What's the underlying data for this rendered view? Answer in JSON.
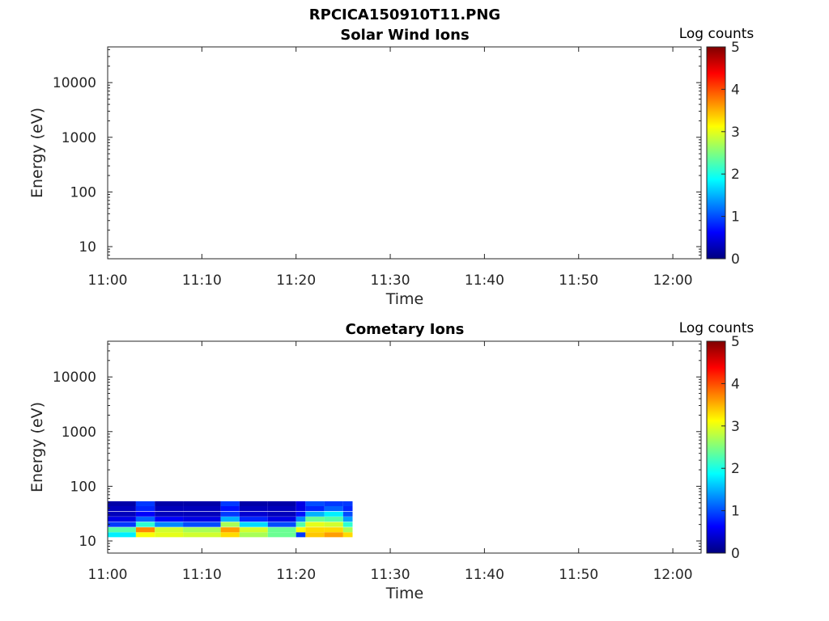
{
  "figure": {
    "title": "RPCICA150910T11.PNG"
  },
  "colorscale": {
    "name": "jet",
    "stops": [
      "#00007f",
      "#0000ff",
      "#007fff",
      "#00ffff",
      "#7fff7f",
      "#ffff00",
      "#ff7f00",
      "#ff0000",
      "#7f0000"
    ]
  },
  "chart_data": [
    {
      "type": "heatmap",
      "title": "Solar Wind Ions",
      "xlabel": "Time",
      "ylabel": "Energy (eV)",
      "yscale": "log",
      "ylim": [
        6,
        45000
      ],
      "xlim": [
        "11:00",
        "12:03"
      ],
      "xticks": [
        "11:00",
        "11:10",
        "11:20",
        "11:30",
        "11:40",
        "11:50",
        "12:00"
      ],
      "yticks": [
        "10",
        "100",
        "1000",
        "10000"
      ],
      "colorbar": {
        "label": "Log counts",
        "range": [
          0,
          5
        ],
        "ticks": [
          "0",
          "1",
          "2",
          "3",
          "4",
          "5"
        ]
      },
      "data": []
    },
    {
      "type": "heatmap",
      "title": "Cometary Ions",
      "xlabel": "Time",
      "ylabel": "Energy (eV)",
      "yscale": "log",
      "ylim": [
        6,
        45000
      ],
      "xlim": [
        "11:00",
        "12:03"
      ],
      "xticks": [
        "11:00",
        "11:10",
        "11:20",
        "11:30",
        "11:40",
        "11:50",
        "12:00"
      ],
      "yticks": [
        "10",
        "100",
        "1000",
        "10000"
      ],
      "colorbar": {
        "label": "Log counts",
        "range": [
          0,
          5
        ],
        "ticks": [
          "0",
          "1",
          "2",
          "3",
          "4",
          "5"
        ]
      },
      "energy_bins_eV": [
        13,
        16,
        20,
        25,
        31,
        39,
        48
      ],
      "data": [
        {
          "start": "11:00",
          "end": "11:03",
          "levels": [
            1.8,
            2.3,
            0.9,
            0.5,
            0.3,
            0.3,
            0.2
          ]
        },
        {
          "start": "11:03",
          "end": "11:05",
          "levels": [
            3.1,
            3.7,
            2.1,
            1.1,
            0.6,
            0.8,
            0.9
          ]
        },
        {
          "start": "11:05",
          "end": "11:08",
          "levels": [
            3.0,
            2.9,
            1.3,
            0.6,
            0.3,
            0.3,
            0.2
          ]
        },
        {
          "start": "11:08",
          "end": "11:12",
          "levels": [
            2.9,
            2.7,
            1.0,
            0.5,
            0.3,
            0.3,
            0.2
          ]
        },
        {
          "start": "11:12",
          "end": "11:14",
          "levels": [
            3.3,
            3.6,
            2.7,
            1.5,
            0.9,
            0.7,
            0.9
          ]
        },
        {
          "start": "11:14",
          "end": "11:17",
          "levels": [
            2.7,
            2.9,
            1.7,
            0.8,
            0.4,
            0.3,
            0.2
          ]
        },
        {
          "start": "11:17",
          "end": "11:20",
          "levels": [
            2.4,
            2.4,
            1.0,
            0.5,
            0.3,
            0.3,
            0.2
          ]
        },
        {
          "start": "11:20",
          "end": "11:21",
          "levels": [
            0.9,
            3.1,
            2.3,
            1.3,
            0.7,
            0.5,
            0.5
          ]
        },
        {
          "start": "11:21",
          "end": "11:23",
          "levels": [
            3.4,
            3.3,
            3.0,
            2.4,
            1.5,
            0.8,
            1.0
          ]
        },
        {
          "start": "11:23",
          "end": "11:25",
          "levels": [
            3.6,
            3.3,
            2.9,
            2.3,
            1.8,
            1.1,
            0.9
          ]
        },
        {
          "start": "11:25",
          "end": "11:26",
          "levels": [
            3.3,
            2.7,
            2.1,
            1.4,
            1.0,
            0.8,
            0.9
          ]
        }
      ]
    }
  ]
}
